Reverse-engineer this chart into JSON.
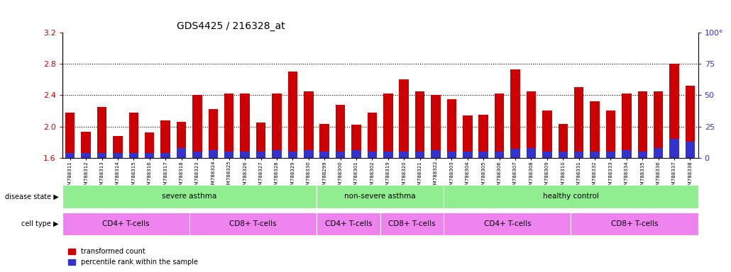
{
  "title": "GDS4425 / 216328_at",
  "samples": [
    "GSM788311",
    "GSM788312",
    "GSM788313",
    "GSM788314",
    "GSM788315",
    "GSM788316",
    "GSM788317",
    "GSM788318",
    "GSM788323",
    "GSM788324",
    "GSM788325",
    "GSM788326",
    "GSM788327",
    "GSM788328",
    "GSM788329",
    "GSM788330",
    "GSM788299",
    "GSM788300",
    "GSM788301",
    "GSM788302",
    "GSM788319",
    "GSM788320",
    "GSM788321",
    "GSM788322",
    "GSM788303",
    "GSM788304",
    "GSM788305",
    "GSM788306",
    "GSM788307",
    "GSM788308",
    "GSM788309",
    "GSM788310",
    "GSM788331",
    "GSM788332",
    "GSM788333",
    "GSM788334",
    "GSM788335",
    "GSM788336",
    "GSM788337",
    "GSM788338"
  ],
  "red_values": [
    2.18,
    1.93,
    2.25,
    1.88,
    2.18,
    1.92,
    2.08,
    2.06,
    2.4,
    2.22,
    2.42,
    2.42,
    2.05,
    2.42,
    2.7,
    2.45,
    2.03,
    2.28,
    2.02,
    2.18,
    2.42,
    2.6,
    2.45,
    2.4,
    2.35,
    2.14,
    2.15,
    2.42,
    2.73,
    2.45,
    2.2,
    2.03,
    2.5,
    2.32,
    2.2,
    2.42,
    2.45,
    2.45,
    2.8,
    2.52
  ],
  "blue_values": [
    4,
    4,
    4,
    4,
    4,
    4,
    4,
    8,
    5,
    6,
    5,
    5,
    5,
    6,
    5,
    6,
    5,
    5,
    6,
    5,
    5,
    5,
    5,
    6,
    5,
    5,
    5,
    5,
    7,
    8,
    5,
    5,
    5,
    5,
    5,
    6,
    5,
    8,
    15,
    13
  ],
  "bar_bottom": 1.6,
  "ylim_left": [
    1.6,
    3.2
  ],
  "ylim_right": [
    0,
    100
  ],
  "yticks_left": [
    1.6,
    2.0,
    2.4,
    2.8,
    3.2
  ],
  "yticks_right": [
    0,
    25,
    50,
    75,
    100
  ],
  "bar_color_red": "#cc0000",
  "bar_color_blue": "#3333cc",
  "bg_color": "#ffffff",
  "plot_bg_color": "#ffffff",
  "dotted_lines": [
    2.0,
    2.4,
    2.8
  ],
  "disease_state_label": "disease state",
  "cell_type_label": "cell type",
  "legend_red": "transformed count",
  "legend_blue": "percentile rank within the sample",
  "title_fontsize": 10,
  "axis_label_color_red": "#cc0000",
  "axis_label_color_blue": "#3333cc",
  "n_bars": 40,
  "disease_groups": [
    {
      "label": "severe asthma",
      "start": 0,
      "end": 15
    },
    {
      "label": "non-severe asthma",
      "start": 16,
      "end": 23
    },
    {
      "label": "healthy control",
      "start": 24,
      "end": 39
    }
  ],
  "cell_groups": [
    {
      "label": "CD4+ T-cells",
      "start": 0,
      "end": 7
    },
    {
      "label": "CD8+ T-cells",
      "start": 8,
      "end": 15
    },
    {
      "label": "CD4+ T-cells",
      "start": 16,
      "end": 19
    },
    {
      "label": "CD8+ T-cells",
      "start": 20,
      "end": 23
    },
    {
      "label": "CD4+ T-cells",
      "start": 24,
      "end": 31
    },
    {
      "label": "CD8+ T-cells",
      "start": 32,
      "end": 39
    }
  ],
  "disease_color": "#90ee90",
  "cell_color_cd4": "#ee82ee",
  "cell_color_cd8": "#da70d6"
}
